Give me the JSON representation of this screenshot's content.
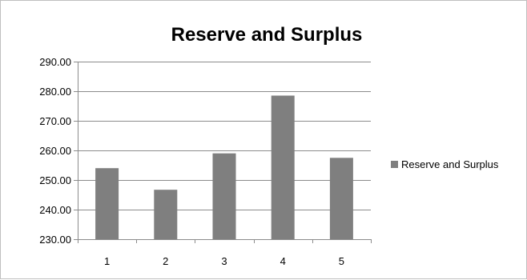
{
  "chart_data": {
    "type": "bar",
    "title": "Reserve and Surplus",
    "xlabel": "",
    "ylabel": "",
    "categories": [
      "1",
      "2",
      "3",
      "4",
      "5"
    ],
    "series": [
      {
        "name": "Reserve and Surplus",
        "values": [
          254.0,
          246.7,
          259.0,
          278.5,
          257.5
        ]
      }
    ],
    "ylim": [
      230,
      290
    ],
    "yticks": [
      "230.00",
      "240.00",
      "250.00",
      "260.00",
      "270.00",
      "280.00",
      "290.00"
    ],
    "grid": true,
    "legend_position": "right",
    "colors": {
      "bar": "#7f7f7f",
      "gridline": "#8c8c8c",
      "axis": "#8c8c8c",
      "frame": "#bfbfbf"
    }
  }
}
